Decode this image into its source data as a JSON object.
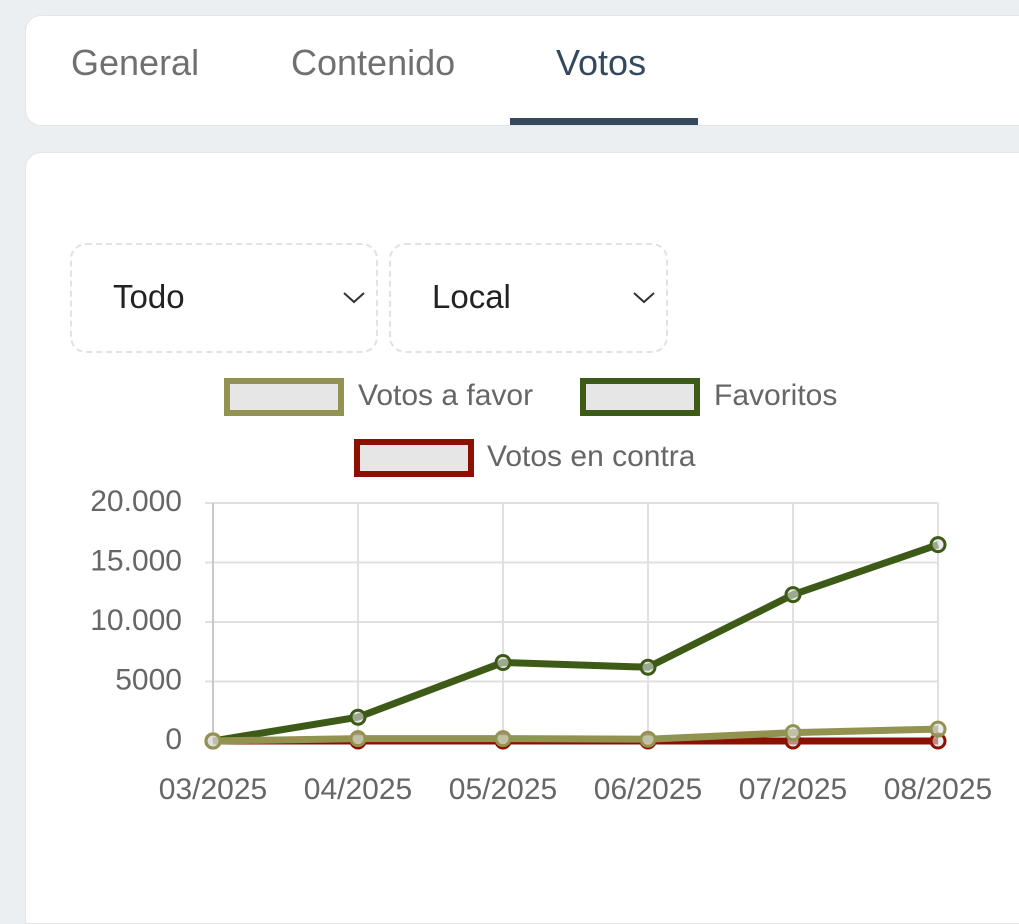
{
  "tabs": [
    "General",
    "Contenido",
    "Votos"
  ],
  "filters": [
    "Todo",
    "Local"
  ],
  "chart_data": {
    "type": "line",
    "categories": [
      "03/2025",
      "04/2025",
      "05/2025",
      "06/2025",
      "07/2025",
      "08/2025"
    ],
    "series": [
      {
        "name": "Votos a favor",
        "color": "#939351",
        "values": [
          0,
          200,
          200,
          150,
          700,
          1000
        ]
      },
      {
        "name": "Favoritos",
        "color": "#3d5a17",
        "values": [
          0,
          2000,
          6600,
          6200,
          12300,
          16500
        ]
      },
      {
        "name": "Votos en contra",
        "color": "#8b1000",
        "values": [
          0,
          0,
          0,
          0,
          0,
          0
        ]
      }
    ],
    "ylim": [
      0,
      20000
    ],
    "yticks": [
      0,
      5000,
      {
        "value": 10000,
        "label": "10.000"
      },
      {
        "value": 15000,
        "label": "15.000"
      },
      {
        "value": 20000,
        "label": "20.000"
      }
    ],
    "grid": true
  }
}
